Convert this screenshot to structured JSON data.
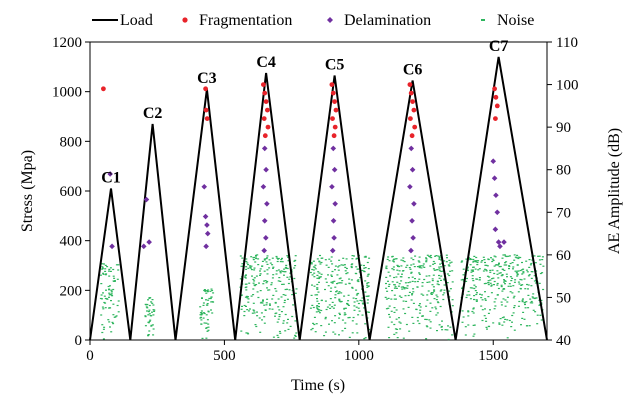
{
  "chart_data": {
    "type": "scatter",
    "xlabel": "Time (s)",
    "ylabel_left": "Stress (Mpa)",
    "ylabel_right": "AE Amplitude (dB)",
    "xlim": [
      0,
      1700
    ],
    "ylim_left": [
      0,
      1200
    ],
    "ylim_right": [
      40,
      110
    ],
    "x_ticks": [
      "0",
      "500",
      "1000",
      "1500"
    ],
    "x_tick_values": [
      0,
      500,
      1000,
      1500
    ],
    "y_left_ticks": [
      "0",
      "200",
      "400",
      "600",
      "800",
      "1000",
      "1200"
    ],
    "y_left_tick_values": [
      0,
      200,
      400,
      600,
      800,
      1000,
      1200
    ],
    "y_right_ticks": [
      "40",
      "50",
      "60",
      "70",
      "80",
      "90",
      "100",
      "110"
    ],
    "y_right_tick_values": [
      40,
      50,
      60,
      70,
      80,
      90,
      100,
      110
    ],
    "legend_position": "top",
    "legend": [
      {
        "label": "Load",
        "marker": "line",
        "color": "#000000"
      },
      {
        "label": "Fragmentation",
        "marker": "dot",
        "color": "#e8232a"
      },
      {
        "label": "Delamination",
        "marker": "diamond",
        "color": "#7030a0"
      },
      {
        "label": "Noise",
        "marker": "dash",
        "color": "#2db55d"
      }
    ],
    "load_series": {
      "name": "Load",
      "x": [
        0,
        78,
        150,
        233,
        318,
        435,
        540,
        655,
        780,
        910,
        1040,
        1200,
        1360,
        1520,
        1700
      ],
      "y": [
        0,
        610,
        0,
        870,
        0,
        1010,
        0,
        1075,
        0,
        1065,
        0,
        1045,
        0,
        1140,
        0
      ]
    },
    "cycles": [
      {
        "label": "C1",
        "peak_time": 78,
        "peak_stress": 610
      },
      {
        "label": "C2",
        "peak_time": 233,
        "peak_stress": 870
      },
      {
        "label": "C3",
        "peak_time": 435,
        "peak_stress": 1010
      },
      {
        "label": "C4",
        "peak_time": 655,
        "peak_stress": 1075
      },
      {
        "label": "C5",
        "peak_time": 910,
        "peak_stress": 1065
      },
      {
        "label": "C6",
        "peak_time": 1200,
        "peak_stress": 1045
      },
      {
        "label": "C7",
        "peak_time": 1520,
        "peak_stress": 1140
      }
    ],
    "fragmentation_points": [
      [
        50,
        99
      ],
      [
        430,
        99
      ],
      [
        432,
        94
      ],
      [
        436,
        92
      ],
      [
        645,
        100
      ],
      [
        650,
        98
      ],
      [
        655,
        96
      ],
      [
        660,
        94
      ],
      [
        648,
        92
      ],
      [
        662,
        90
      ],
      [
        652,
        88
      ],
      [
        900,
        100
      ],
      [
        905,
        98
      ],
      [
        910,
        96
      ],
      [
        915,
        94
      ],
      [
        902,
        92
      ],
      [
        912,
        90
      ],
      [
        908,
        88
      ],
      [
        1190,
        100
      ],
      [
        1195,
        98
      ],
      [
        1200,
        96
      ],
      [
        1205,
        94
      ],
      [
        1192,
        92
      ],
      [
        1208,
        90
      ],
      [
        1198,
        88
      ],
      [
        1505,
        99
      ],
      [
        1510,
        97
      ],
      [
        1515,
        95
      ],
      [
        1508,
        92
      ]
    ],
    "delamination_points": [
      [
        75,
        79
      ],
      [
        82,
        62
      ],
      [
        200,
        62
      ],
      [
        210,
        73
      ],
      [
        220,
        63
      ],
      [
        425,
        76
      ],
      [
        430,
        69
      ],
      [
        435,
        67
      ],
      [
        438,
        65
      ],
      [
        432,
        62
      ],
      [
        650,
        85
      ],
      [
        655,
        80
      ],
      [
        645,
        76
      ],
      [
        658,
        72
      ],
      [
        650,
        68
      ],
      [
        654,
        64
      ],
      [
        648,
        61
      ],
      [
        905,
        85
      ],
      [
        910,
        80
      ],
      [
        900,
        76
      ],
      [
        912,
        72
      ],
      [
        906,
        68
      ],
      [
        908,
        64
      ],
      [
        903,
        61
      ],
      [
        1195,
        85
      ],
      [
        1200,
        80
      ],
      [
        1190,
        76
      ],
      [
        1205,
        72
      ],
      [
        1198,
        68
      ],
      [
        1202,
        64
      ],
      [
        1194,
        61
      ],
      [
        1500,
        82
      ],
      [
        1505,
        78
      ],
      [
        1510,
        74
      ],
      [
        1515,
        70
      ],
      [
        1508,
        66
      ],
      [
        1520,
        63
      ],
      [
        1525,
        62
      ],
      [
        1540,
        63
      ]
    ],
    "noise_bands": [
      {
        "x_range": [
          40,
          110
        ],
        "amp_max": 58
      },
      {
        "x_range": [
          205,
          240
        ],
        "amp_max": 50
      },
      {
        "x_range": [
          410,
          460
        ],
        "amp_max": 52
      },
      {
        "x_range": [
          560,
          770
        ],
        "amp_max": 60
      },
      {
        "x_range": [
          820,
          1040
        ],
        "amp_max": 60
      },
      {
        "x_range": [
          1100,
          1350
        ],
        "amp_max": 60
      },
      {
        "x_range": [
          1380,
          1690
        ],
        "amp_max": 60
      }
    ]
  }
}
